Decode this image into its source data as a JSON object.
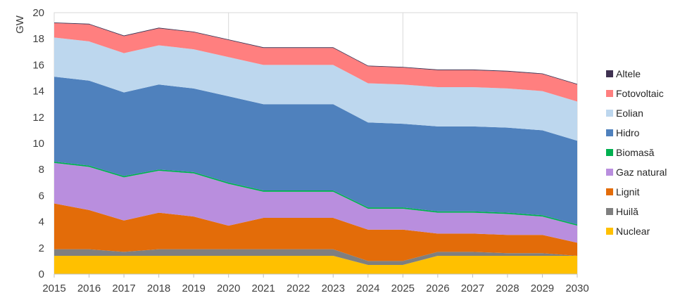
{
  "chart_data": {
    "type": "area",
    "stacked": true,
    "title": "",
    "xlabel": "",
    "ylabel": "GW",
    "xlim": [
      2015,
      2030
    ],
    "ylim": [
      0,
      20
    ],
    "yticks": [
      0,
      2,
      4,
      6,
      8,
      10,
      12,
      14,
      16,
      18,
      20
    ],
    "grid": {
      "vertical_only": true,
      "x_lines": [
        2020,
        2025
      ]
    },
    "legend_position": "right",
    "x": [
      2015,
      2016,
      2017,
      2018,
      2019,
      2020,
      2021,
      2022,
      2023,
      2024,
      2025,
      2026,
      2027,
      2028,
      2029,
      2030
    ],
    "series": [
      {
        "name": "Nuclear",
        "color": "#FFC000",
        "values": [
          1.4,
          1.4,
          1.4,
          1.4,
          1.4,
          1.4,
          1.4,
          1.4,
          1.4,
          0.7,
          0.7,
          1.4,
          1.4,
          1.4,
          1.4,
          1.4
        ]
      },
      {
        "name": "Huilă",
        "color": "#7F7F7F",
        "values": [
          0.5,
          0.5,
          0.3,
          0.5,
          0.5,
          0.5,
          0.5,
          0.5,
          0.5,
          0.3,
          0.3,
          0.3,
          0.3,
          0.2,
          0.2,
          0.0
        ]
      },
      {
        "name": "Lignit",
        "color": "#E36C09",
        "values": [
          3.5,
          3.0,
          2.4,
          2.8,
          2.5,
          1.8,
          2.4,
          2.4,
          2.4,
          2.4,
          2.4,
          1.4,
          1.4,
          1.4,
          1.4,
          1.0
        ]
      },
      {
        "name": "Gaz natural",
        "color": "#B98EDE",
        "values": [
          3.1,
          3.3,
          3.3,
          3.2,
          3.3,
          3.2,
          2.0,
          2.0,
          2.0,
          1.6,
          1.6,
          1.6,
          1.6,
          1.6,
          1.4,
          1.3
        ]
      },
      {
        "name": "Biomasă",
        "color": "#00B050",
        "values": [
          0.1,
          0.1,
          0.1,
          0.1,
          0.1,
          0.1,
          0.1,
          0.1,
          0.1,
          0.1,
          0.1,
          0.1,
          0.1,
          0.1,
          0.1,
          0.1
        ]
      },
      {
        "name": "Hidro",
        "color": "#4F81BD",
        "values": [
          6.5,
          6.5,
          6.4,
          6.5,
          6.4,
          6.6,
          6.6,
          6.6,
          6.6,
          6.5,
          6.4,
          6.5,
          6.5,
          6.5,
          6.5,
          6.4
        ]
      },
      {
        "name": "Eolian",
        "color": "#BDD7EE",
        "values": [
          3.0,
          3.0,
          3.0,
          3.0,
          3.0,
          3.0,
          3.0,
          3.0,
          3.0,
          3.0,
          3.0,
          3.0,
          3.0,
          3.0,
          3.0,
          3.0
        ]
      },
      {
        "name": "Fotovoltaic",
        "color": "#FF7F7F",
        "values": [
          1.1,
          1.3,
          1.3,
          1.3,
          1.3,
          1.3,
          1.3,
          1.3,
          1.3,
          1.3,
          1.3,
          1.3,
          1.3,
          1.3,
          1.3,
          1.3
        ]
      },
      {
        "name": "Altele",
        "color": "#3F3151",
        "values": [
          0.05,
          0.05,
          0.05,
          0.05,
          0.05,
          0.05,
          0.05,
          0.05,
          0.05,
          0.05,
          0.05,
          0.05,
          0.05,
          0.05,
          0.05,
          0.05
        ]
      }
    ],
    "legend_order": [
      "Altele",
      "Fotovoltaic",
      "Eolian",
      "Hidro",
      "Biomasă",
      "Gaz natural",
      "Lignit",
      "Huilă",
      "Nuclear"
    ]
  }
}
